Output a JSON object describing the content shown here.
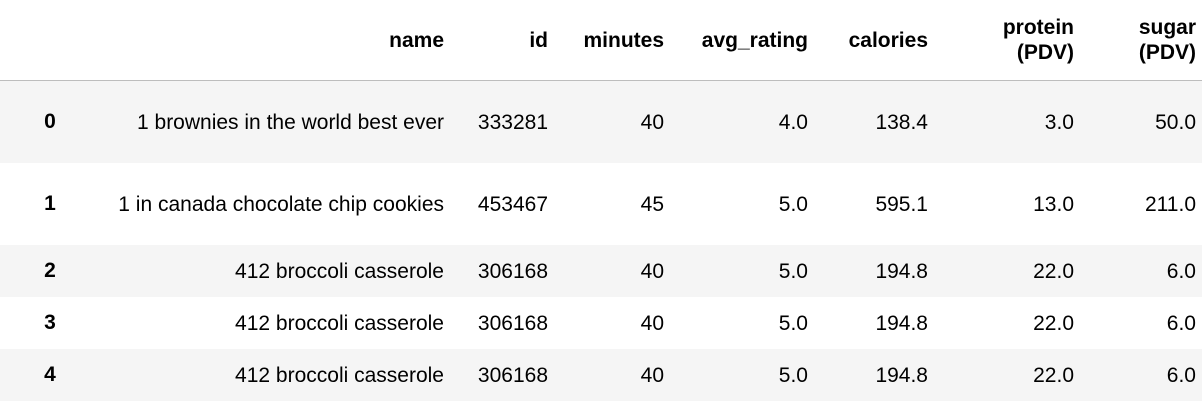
{
  "table": {
    "columns": [
      "name",
      "id",
      "minutes",
      "avg_rating",
      "calories",
      "protein (PDV)",
      "sugar (PDV)"
    ],
    "header": {
      "index": "",
      "name": "name",
      "id": "id",
      "minutes": "minutes",
      "avg_rating": "avg_rating",
      "calories": "calories",
      "protein_l1": "protein",
      "protein_l2": "(PDV)",
      "sugar_l1": "sugar",
      "sugar_l2": "(PDV)"
    },
    "rows": [
      {
        "index": "0",
        "name": "1 brownies in the world best ever",
        "id": "333281",
        "minutes": "40",
        "avg_rating": "4.0",
        "calories": "138.4",
        "protein": "3.0",
        "sugar": "50.0"
      },
      {
        "index": "1",
        "name": "1 in canada chocolate chip cookies",
        "id": "453467",
        "minutes": "45",
        "avg_rating": "5.0",
        "calories": "595.1",
        "protein": "13.0",
        "sugar": "211.0"
      },
      {
        "index": "2",
        "name": "412 broccoli casserole",
        "id": "306168",
        "minutes": "40",
        "avg_rating": "5.0",
        "calories": "194.8",
        "protein": "22.0",
        "sugar": "6.0"
      },
      {
        "index": "3",
        "name": "412 broccoli casserole",
        "id": "306168",
        "minutes": "40",
        "avg_rating": "5.0",
        "calories": "194.8",
        "protein": "22.0",
        "sugar": "6.0"
      },
      {
        "index": "4",
        "name": "412 broccoli casserole",
        "id": "306168",
        "minutes": "40",
        "avg_rating": "5.0",
        "calories": "194.8",
        "protein": "22.0",
        "sugar": "6.0"
      }
    ]
  }
}
